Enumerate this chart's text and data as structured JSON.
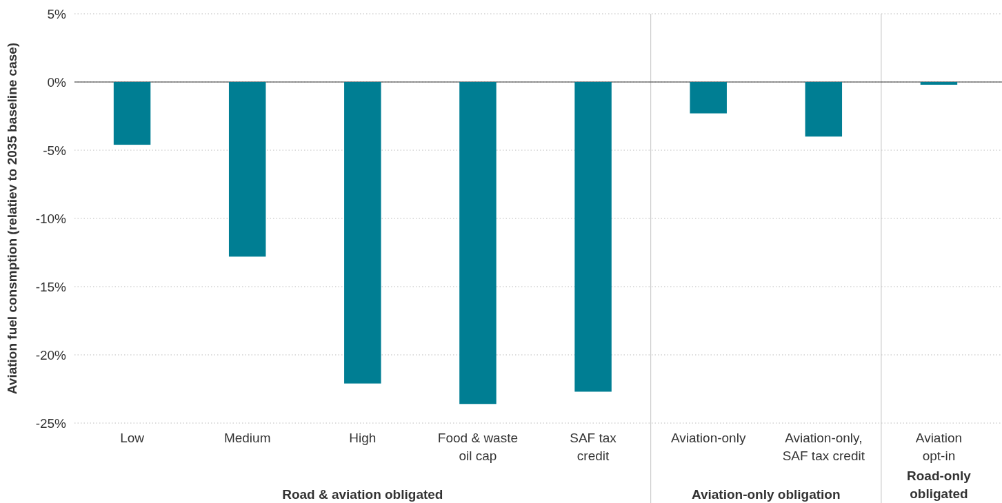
{
  "chart_data": {
    "type": "bar",
    "ylabel": "Aviation fuel consmption (relatiev to 2035 baseline case)",
    "categories": [
      "Low",
      "Medium",
      "High",
      "Food & waste\noil cap",
      "SAF tax\ncredit",
      "Aviation-only",
      "Aviation-only,\nSAF tax credit",
      "Aviation\nopt-in"
    ],
    "values": [
      -4.6,
      -12.8,
      -22.1,
      -23.6,
      -22.7,
      -2.3,
      -4.0,
      -0.2
    ],
    "color": "#007e93",
    "ylim": [
      -25,
      5
    ],
    "yticks": [
      {
        "value": 5,
        "label": "5%"
      },
      {
        "value": 0,
        "label": "0%"
      },
      {
        "value": -5,
        "label": "-5%"
      },
      {
        "value": -10,
        "label": "-10%"
      },
      {
        "value": -15,
        "label": "-15%"
      },
      {
        "value": -20,
        "label": "-20%"
      },
      {
        "value": -25,
        "label": "-25%"
      }
    ],
    "grid": "y",
    "annotations": [
      "Road & aviation obligated",
      "Aviation-only obligation",
      "Road-only\nobligated"
    ]
  }
}
